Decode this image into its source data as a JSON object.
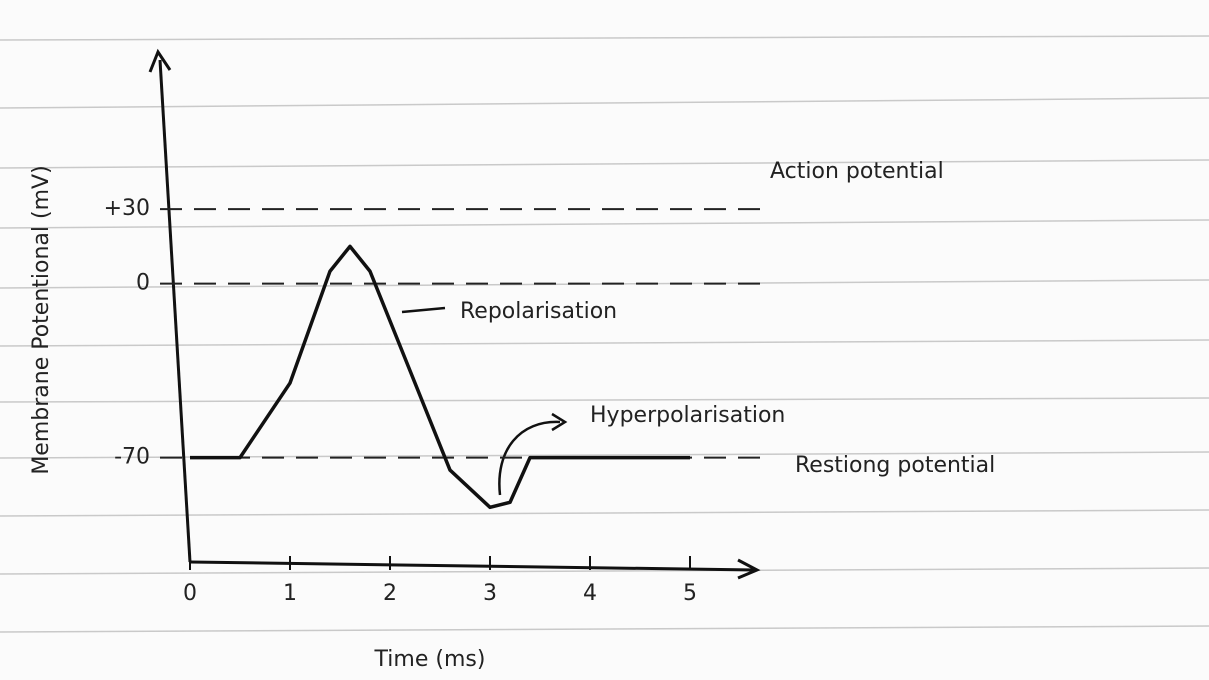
{
  "chart_data": {
    "type": "line",
    "x_label": "Time (ms)",
    "y_label": "Membrane Potentional (mV)",
    "annotations": [
      "Action potential",
      "Repolarisation",
      "Hyperpolarisation",
      "Restiong potential"
    ],
    "series": [
      {
        "color": "#111111",
        "x": [
          0,
          0.5,
          1.0,
          1.4,
          1.6,
          1.8,
          2.2,
          2.6,
          3.0,
          3.2,
          3.4,
          5
        ],
        "values": [
          -70,
          -70,
          -40,
          5,
          15,
          5,
          -35,
          -75,
          -90,
          -88,
          -70,
          -70
        ]
      }
    ],
    "xlim": [
      0,
      5.6
    ],
    "xticks": [
      0,
      1,
      2,
      3,
      4,
      5
    ],
    "ylim": [
      -112,
      92
    ],
    "yticks": [
      {
        "value": 30,
        "label": "+30"
      },
      0,
      -70
    ],
    "grid": true
  }
}
